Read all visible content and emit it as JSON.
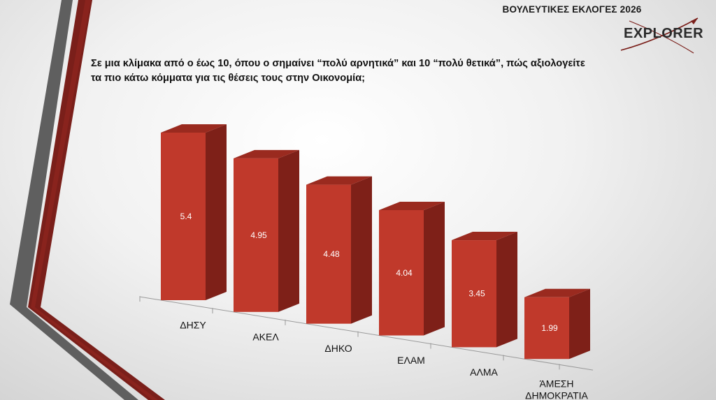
{
  "header": {
    "title": "ΒΟΥΛΕΥΤΙΚΕΣ ΕΚΛΟΓΕΣ 2026",
    "logo_text": "EXPLORER"
  },
  "question": {
    "line1": "Σε μια κλίμακα από ο έως 10, όπου ο σημαίνει “πολύ αρνητικά” και 10 “πολύ θετικά”, πώς αξιολογείτε",
    "line2": "τα πιο κάτω κόμματα για τις θέσεις τους στην Οικονομία;"
  },
  "colors": {
    "bar_front": "#c0392b",
    "bar_side": "#7e2018",
    "bar_top": "#9a2a1f",
    "label_text": "#ffffff",
    "accent_dark_red": "#7a1f1a",
    "accent_grey": "#5a5a5a"
  },
  "chart_data": {
    "type": "bar",
    "categories": [
      "ΔΗΣΥ",
      "ΑΚΕΛ",
      "ΔΗΚΟ",
      "ΕΛΑΜ",
      "ΑΛΜΑ",
      "ΆΜΕΣΗ ΔΗΜΟΚΡΑΤΙΑ"
    ],
    "category_lines": [
      [
        "ΔΗΣΥ"
      ],
      [
        "ΑΚΕΛ"
      ],
      [
        "ΔΗΚΟ"
      ],
      [
        "ΕΛΑΜ"
      ],
      [
        "ΑΛΜΑ"
      ],
      [
        "ΆΜΕΣΗ",
        "ΔΗΜΟΚΡΑΤΙΑ"
      ]
    ],
    "values": [
      5.4,
      4.95,
      4.48,
      4.04,
      3.45,
      1.99
    ],
    "data_labels": [
      "5.4",
      "4.95",
      "4.48",
      "4.04",
      "3.45",
      "1.99"
    ],
    "ylim": [
      0,
      5.4
    ],
    "grid": false,
    "legend": "none",
    "title": "",
    "xlabel": "",
    "ylabel": ""
  }
}
